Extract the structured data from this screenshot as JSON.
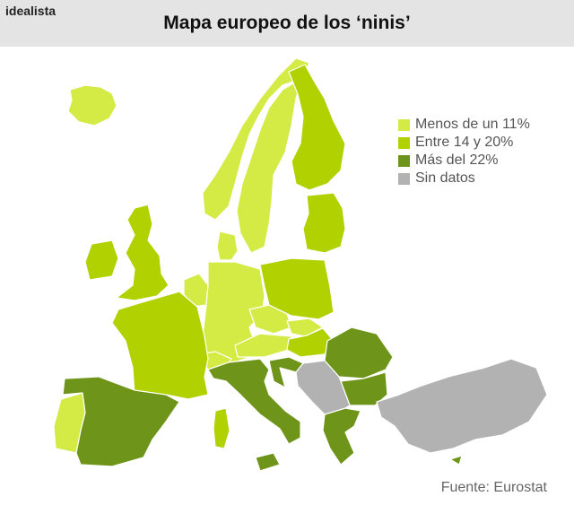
{
  "header": {
    "brand": "idealista",
    "title": "Mapa europeo de los ‘ninis’"
  },
  "legend": [
    {
      "label": "Menos de un 11%",
      "color": "#d4ea45"
    },
    {
      "label": "Entre 14 y 20%",
      "color": "#b1d100"
    },
    {
      "label": "Más del 22%",
      "color": "#6e951a"
    },
    {
      "label": "Sin datos",
      "color": "#b2b2b2"
    }
  ],
  "source": "Fuente: Eurostat"
}
